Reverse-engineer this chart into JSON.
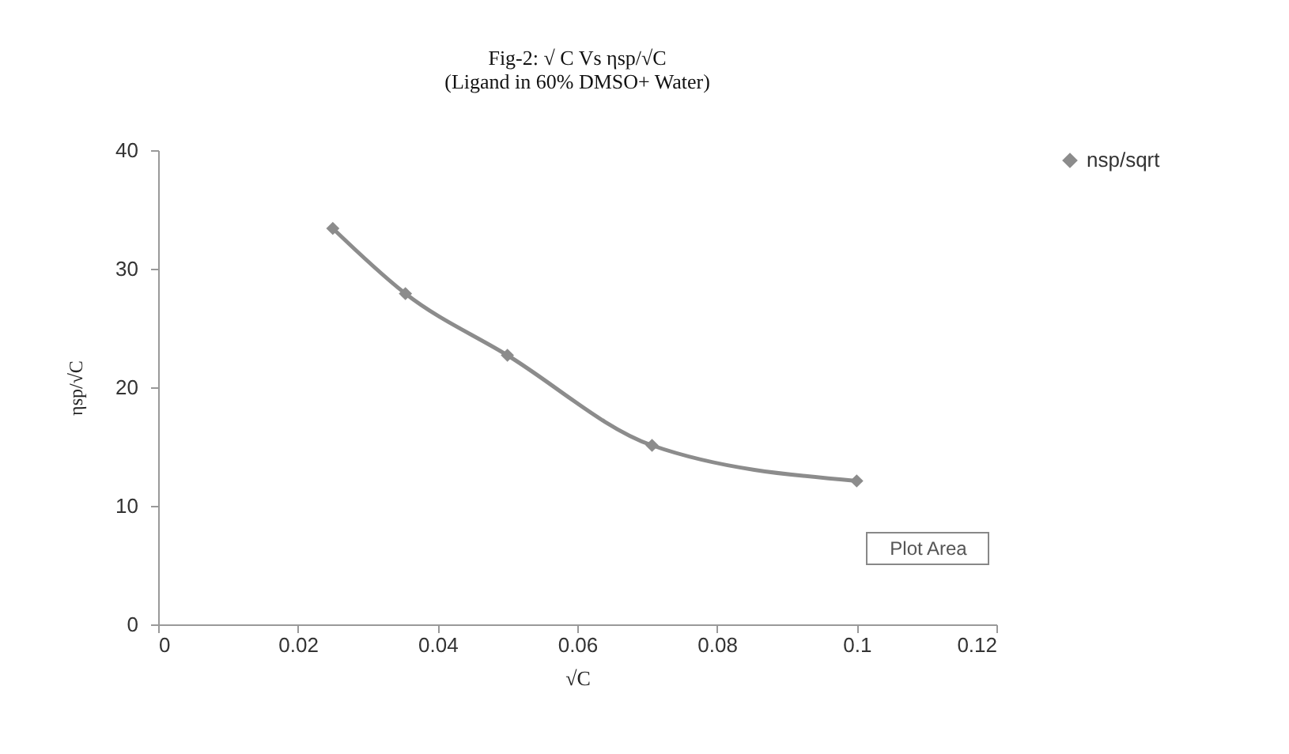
{
  "chart_data": {
    "type": "line",
    "title": "Fig-2: √ C Vs  ηsp/√C",
    "subtitle": "(Ligand  in  60% DMSO+ Water)",
    "xlabel": "√C",
    "ylabel": "ηsp/√C",
    "x": [
      0.025,
      0.0354,
      0.05,
      0.0707,
      0.1
    ],
    "series": [
      {
        "name": "nsp/sqrt",
        "color": "#8c8c8c",
        "values": [
          33.4,
          27.9,
          22.7,
          15.1,
          12.1
        ]
      }
    ],
    "xlim": [
      0,
      0.12
    ],
    "xticks": [
      0,
      0.02,
      0.04,
      0.06,
      0.08,
      0.1,
      0.12
    ],
    "ylim": [
      0,
      40
    ],
    "yticks": [
      0,
      10,
      20,
      30,
      40
    ],
    "grid": false,
    "legend": "right",
    "marker": "diamond",
    "line_style": "solid",
    "annotations": [
      "Plot Area"
    ]
  }
}
